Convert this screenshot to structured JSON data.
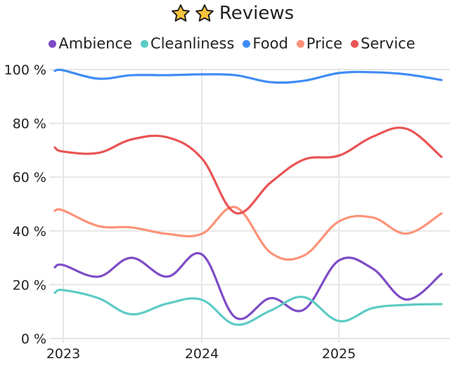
{
  "header": {
    "title": "Reviews",
    "icons": [
      "star-icon",
      "star-icon"
    ]
  },
  "legend": [
    {
      "name": "Ambience",
      "color": "#7e4bc7"
    },
    {
      "name": "Cleanliness",
      "color": "#5ccbc4"
    },
    {
      "name": "Food",
      "color": "#3f8cf5"
    },
    {
      "name": "Price",
      "color": "#fd9277"
    },
    {
      "name": "Service",
      "color": "#e95354"
    }
  ],
  "chart_data": {
    "type": "line",
    "title": "Reviews",
    "xlabel": "",
    "ylabel": "",
    "ylim": [
      0,
      100
    ],
    "yticks": [
      "0 %",
      "20 %",
      "40 %",
      "60 %",
      "80 %",
      "100 %"
    ],
    "xticks": [
      "2023",
      "2024",
      "2025"
    ],
    "grid": true,
    "legend_position": "top",
    "x": [
      "2022-Q4",
      "2023-Q1",
      "2023-Q2",
      "2023-Q3",
      "2023-Q4",
      "2024-Q1",
      "2024-Q2",
      "2024-Q3",
      "2024-Q4",
      "2025-Q1",
      "2025-Q2",
      "2025-Q3",
      "2025-Q4"
    ],
    "series": [
      {
        "name": "Ambience",
        "color": "#7e4bc7",
        "values": [
          26.5,
          27.3,
          23,
          30,
          23,
          31.3,
          7.8,
          15,
          10.7,
          29,
          26,
          14.5,
          24
        ]
      },
      {
        "name": "Cleanliness",
        "color": "#5ccbc4",
        "values": [
          17,
          18,
          15,
          9,
          13,
          14.4,
          5.2,
          10.4,
          15.4,
          6.5,
          11.3,
          12.5,
          12.8
        ]
      },
      {
        "name": "Food",
        "color": "#3f8cf5",
        "values": [
          99.5,
          99.7,
          96.6,
          97.9,
          97.9,
          98.2,
          97.9,
          95.3,
          95.8,
          98.7,
          99,
          98.2,
          96.1
        ]
      },
      {
        "name": "Price",
        "color": "#fd9277",
        "values": [
          47.5,
          47.6,
          41.8,
          41.3,
          38.9,
          38.9,
          48.8,
          31.9,
          30.8,
          43.5,
          45,
          39,
          46.5
        ]
      },
      {
        "name": "Service",
        "color": "#e95354",
        "values": [
          71,
          69.5,
          69,
          74,
          74.8,
          67,
          46.7,
          58,
          66.5,
          68,
          75,
          78,
          67.5
        ]
      }
    ]
  }
}
